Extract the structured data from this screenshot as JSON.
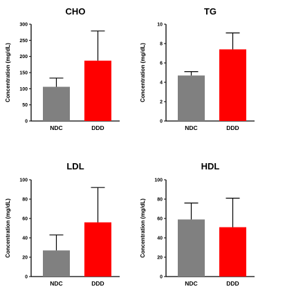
{
  "chart_data": [
    {
      "type": "bar",
      "title": "CHO",
      "ylabel": "Concentration (mg/dL)",
      "xlabel": "",
      "categories": [
        "NDC",
        "DDD"
      ],
      "values": [
        106,
        187
      ],
      "error_upper": [
        133,
        279
      ],
      "colors": [
        "#808080",
        "#ff0000"
      ],
      "ylim": [
        0,
        300
      ],
      "yticks": [
        0,
        50,
        100,
        150,
        200,
        250,
        300
      ],
      "grid": false
    },
    {
      "type": "bar",
      "title": "TG",
      "ylabel": "Concentration (mg/dL)",
      "xlabel": "",
      "categories": [
        "NDC",
        "DDD"
      ],
      "values": [
        4.7,
        7.4
      ],
      "error_upper": [
        5.1,
        9.1
      ],
      "colors": [
        "#808080",
        "#ff0000"
      ],
      "ylim": [
        0,
        10
      ],
      "yticks": [
        0,
        2,
        4,
        6,
        8,
        10
      ],
      "grid": false
    },
    {
      "type": "bar",
      "title": "LDL",
      "ylabel": "Concentration (mg/dL)",
      "xlabel": "",
      "categories": [
        "NDC",
        "DDD"
      ],
      "values": [
        27,
        56
      ],
      "error_upper": [
        43,
        92
      ],
      "colors": [
        "#808080",
        "#ff0000"
      ],
      "ylim": [
        0,
        100
      ],
      "yticks": [
        0,
        20,
        40,
        60,
        80,
        100
      ],
      "grid": false
    },
    {
      "type": "bar",
      "title": "HDL",
      "ylabel": "Concentration (mg/dL)",
      "xlabel": "",
      "categories": [
        "NDC",
        "DDD"
      ],
      "values": [
        59,
        51
      ],
      "error_upper": [
        76,
        81
      ],
      "colors": [
        "#808080",
        "#ff0000"
      ],
      "ylim": [
        0,
        100
      ],
      "yticks": [
        0,
        20,
        40,
        60,
        80,
        100
      ],
      "grid": false
    }
  ]
}
